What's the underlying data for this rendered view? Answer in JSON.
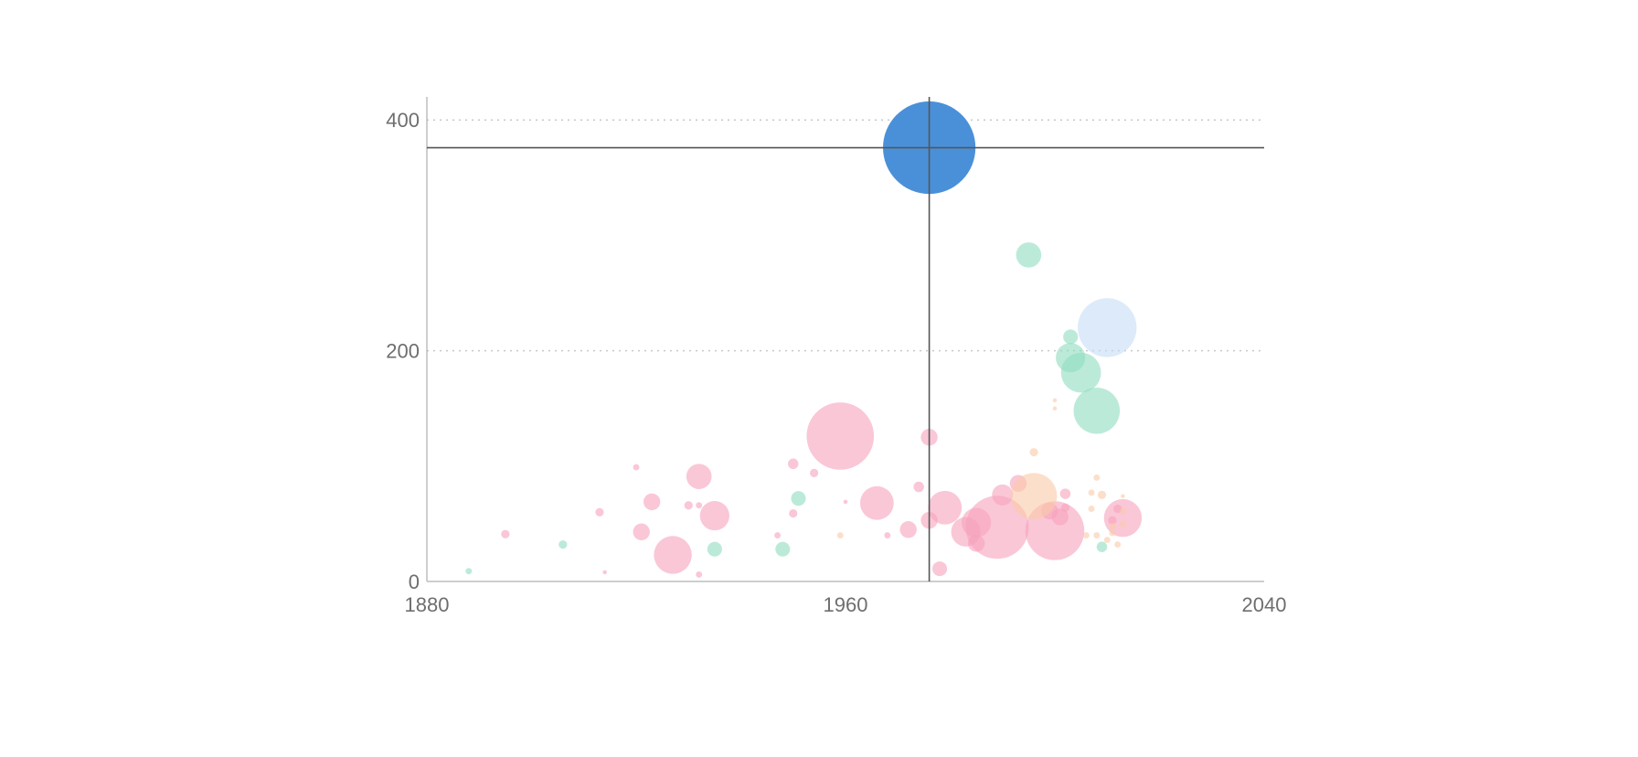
{
  "chart_data": {
    "type": "scatter",
    "title": "",
    "xlabel": "",
    "ylabel": "",
    "xlim": [
      1880,
      2040
    ],
    "ylim": [
      0,
      420
    ],
    "x_ticks": [
      "1880",
      "1960",
      "2040"
    ],
    "y_ticks": [
      "0",
      "200",
      "400"
    ],
    "grid": "horizontal dotted at y=200 and y=400",
    "legend": "none",
    "encoding": "bubble size = third variable",
    "highlighted_point": {
      "x": 1976,
      "y": 376,
      "size": 22,
      "color": "#4a90d9"
    },
    "series": [
      {
        "color": "#f7a1bc",
        "points": [
          {
            "x": 1895,
            "y": 41,
            "size": 2
          },
          {
            "x": 1913,
            "y": 60,
            "size": 2
          },
          {
            "x": 1914,
            "y": 8,
            "size": 1
          },
          {
            "x": 1920,
            "y": 99,
            "size": 1.5
          },
          {
            "x": 1921,
            "y": 43,
            "size": 4
          },
          {
            "x": 1923,
            "y": 69,
            "size": 4
          },
          {
            "x": 1927,
            "y": 23,
            "size": 9
          },
          {
            "x": 1930,
            "y": 66,
            "size": 2
          },
          {
            "x": 1932,
            "y": 91,
            "size": 6
          },
          {
            "x": 1932,
            "y": 66,
            "size": 1.5
          },
          {
            "x": 1932,
            "y": 6,
            "size": 1.5
          },
          {
            "x": 1935,
            "y": 57,
            "size": 7
          },
          {
            "x": 1947,
            "y": 40,
            "size": 1.5
          },
          {
            "x": 1950,
            "y": 59,
            "size": 2
          },
          {
            "x": 1950,
            "y": 102,
            "size": 2.5
          },
          {
            "x": 1954,
            "y": 94,
            "size": 2
          },
          {
            "x": 1959,
            "y": 126,
            "size": 16
          },
          {
            "x": 1960,
            "y": 69,
            "size": 1
          },
          {
            "x": 1966,
            "y": 68,
            "size": 8
          },
          {
            "x": 1968,
            "y": 40,
            "size": 1.5
          },
          {
            "x": 1972,
            "y": 45,
            "size": 4
          },
          {
            "x": 1974,
            "y": 82,
            "size": 2.5
          },
          {
            "x": 1976,
            "y": 125,
            "size": 4
          },
          {
            "x": 1976,
            "y": 53,
            "size": 4
          },
          {
            "x": 1978,
            "y": 11,
            "size": 3.5
          },
          {
            "x": 1979,
            "y": 64,
            "size": 8
          },
          {
            "x": 1983,
            "y": 43,
            "size": 7
          },
          {
            "x": 1985,
            "y": 51,
            "size": 7
          },
          {
            "x": 1985,
            "y": 33,
            "size": 4
          },
          {
            "x": 1989,
            "y": 47,
            "size": 15
          },
          {
            "x": 1990,
            "y": 75,
            "size": 5
          },
          {
            "x": 1993,
            "y": 85,
            "size": 4
          },
          {
            "x": 1999,
            "y": 61,
            "size": 4
          },
          {
            "x": 2000,
            "y": 44,
            "size": 14
          },
          {
            "x": 2001,
            "y": 56,
            "size": 4
          },
          {
            "x": 2002,
            "y": 76,
            "size": 2.5
          },
          {
            "x": 2002,
            "y": 64,
            "size": 2
          },
          {
            "x": 2012,
            "y": 63,
            "size": 2
          },
          {
            "x": 2013,
            "y": 55,
            "size": 9
          },
          {
            "x": 2011,
            "y": 53,
            "size": 2
          }
        ]
      },
      {
        "color": "#8fdcc0",
        "points": [
          {
            "x": 1888,
            "y": 9,
            "size": 1.5
          },
          {
            "x": 1906,
            "y": 32,
            "size": 2
          },
          {
            "x": 1935,
            "y": 28,
            "size": 3.5
          },
          {
            "x": 1948,
            "y": 28,
            "size": 3.5
          },
          {
            "x": 1951,
            "y": 72,
            "size": 3.5
          },
          {
            "x": 1995,
            "y": 283,
            "size": 6
          },
          {
            "x": 2003,
            "y": 212,
            "size": 3.5
          },
          {
            "x": 2003,
            "y": 194,
            "size": 7
          },
          {
            "x": 2005,
            "y": 181,
            "size": 9.5
          },
          {
            "x": 2008,
            "y": 148,
            "size": 11
          },
          {
            "x": 2009,
            "y": 30,
            "size": 2.5
          }
        ]
      },
      {
        "color": "#fac9a6",
        "points": [
          {
            "x": 1959,
            "y": 40,
            "size": 1.5
          },
          {
            "x": 1996,
            "y": 112,
            "size": 2
          },
          {
            "x": 1996,
            "y": 74,
            "size": 11
          },
          {
            "x": 2000,
            "y": 157,
            "size": 1
          },
          {
            "x": 2000,
            "y": 150,
            "size": 1
          },
          {
            "x": 2006,
            "y": 40,
            "size": 1.5
          },
          {
            "x": 2007,
            "y": 77,
            "size": 1.5
          },
          {
            "x": 2007,
            "y": 63,
            "size": 1.5
          },
          {
            "x": 2008,
            "y": 90,
            "size": 1.5
          },
          {
            "x": 2008,
            "y": 40,
            "size": 1.5
          },
          {
            "x": 2009,
            "y": 75,
            "size": 2
          },
          {
            "x": 2010,
            "y": 36,
            "size": 1.5
          },
          {
            "x": 2011,
            "y": 42,
            "size": 1.5
          },
          {
            "x": 2011,
            "y": 48,
            "size": 1.5
          },
          {
            "x": 2012,
            "y": 32,
            "size": 1.5
          },
          {
            "x": 2013,
            "y": 74,
            "size": 1
          },
          {
            "x": 2013,
            "y": 61,
            "size": 1.5
          },
          {
            "x": 2013,
            "y": 50,
            "size": 1.5
          }
        ]
      },
      {
        "color": "#c6dcf5",
        "points": [
          {
            "x": 2010,
            "y": 220,
            "size": 14
          }
        ]
      }
    ]
  }
}
